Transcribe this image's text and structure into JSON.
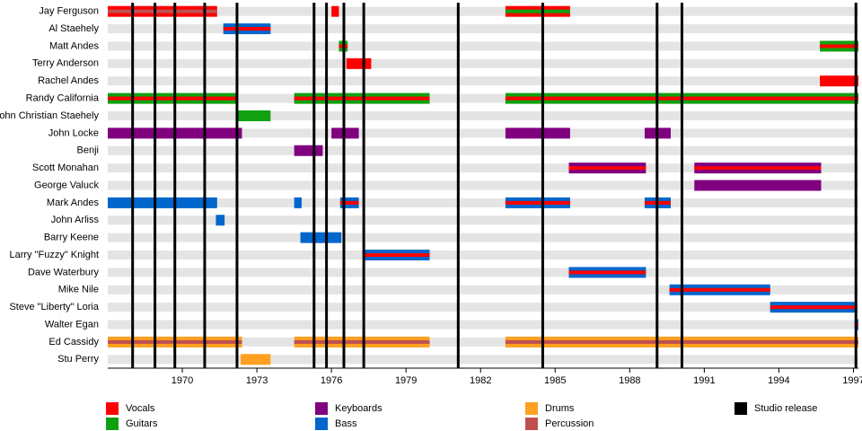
{
  "chart_data": {
    "type": "timeline",
    "xlim": [
      1967,
      1997.2
    ],
    "xticks": [
      1970,
      1973,
      1976,
      1979,
      1982,
      1985,
      1988,
      1991,
      1994,
      1997
    ],
    "roles": [
      {
        "name": "Vocals",
        "color": "#ff0000"
      },
      {
        "name": "Guitars",
        "color": "#10a010"
      },
      {
        "name": "Keyboards",
        "color": "#800080"
      },
      {
        "name": "Bass",
        "color": "#0066cc"
      },
      {
        "name": "Drums",
        "color": "#ffa020"
      },
      {
        "name": "Percussion",
        "color": "#c05050"
      }
    ],
    "releases_label": "Studio release",
    "releases_color": "#000000",
    "releases": [
      1968.0,
      1968.9,
      1969.7,
      1970.9,
      1972.2,
      1975.3,
      1975.8,
      1976.5,
      1977.3,
      1981.1,
      1984.5,
      1989.1,
      1990.1,
      1997.1
    ],
    "members": [
      {
        "name": "Jay Ferguson",
        "periods": [
          {
            "start": 1967,
            "end": 1971.4,
            "roles": [
              "Vocals",
              "Percussion"
            ]
          },
          {
            "start": 1976.0,
            "end": 1976.3,
            "roles": [
              "Vocals"
            ]
          },
          {
            "start": 1983.0,
            "end": 1985.6,
            "roles": [
              "Vocals",
              "Guitars"
            ]
          }
        ]
      },
      {
        "name": "Al Staehely",
        "periods": [
          {
            "start": 1971.65,
            "end": 1973.55,
            "roles": [
              "Bass",
              "Vocals"
            ]
          }
        ]
      },
      {
        "name": "Matt Andes",
        "periods": [
          {
            "start": 1976.3,
            "end": 1976.65,
            "roles": [
              "Guitars",
              "Vocals"
            ]
          },
          {
            "start": 1995.65,
            "end": 1997.2,
            "roles": [
              "Guitars",
              "Vocals"
            ]
          }
        ]
      },
      {
        "name": "Terry Anderson",
        "periods": [
          {
            "start": 1976.6,
            "end": 1977.6,
            "roles": [
              "Vocals"
            ]
          }
        ]
      },
      {
        "name": "Rachel Andes",
        "periods": [
          {
            "start": 1995.65,
            "end": 1997.2,
            "roles": [
              "Vocals"
            ]
          }
        ]
      },
      {
        "name": "Randy California",
        "periods": [
          {
            "start": 1967,
            "end": 1972.15,
            "roles": [
              "Guitars",
              "Vocals"
            ]
          },
          {
            "start": 1974.5,
            "end": 1979.95,
            "roles": [
              "Guitars",
              "Vocals"
            ]
          },
          {
            "start": 1983.0,
            "end": 1997.2,
            "roles": [
              "Guitars",
              "Vocals"
            ]
          }
        ]
      },
      {
        "name": "John Christian Staehely",
        "periods": [
          {
            "start": 1972.15,
            "end": 1973.55,
            "roles": [
              "Guitars"
            ]
          }
        ]
      },
      {
        "name": "John Locke",
        "periods": [
          {
            "start": 1967,
            "end": 1972.4,
            "roles": [
              "Keyboards"
            ]
          },
          {
            "start": 1976.0,
            "end": 1977.1,
            "roles": [
              "Keyboards"
            ]
          },
          {
            "start": 1983.0,
            "end": 1985.6,
            "roles": [
              "Keyboards"
            ]
          },
          {
            "start": 1988.6,
            "end": 1989.65,
            "roles": [
              "Keyboards"
            ]
          }
        ]
      },
      {
        "name": "Benji",
        "periods": [
          {
            "start": 1974.5,
            "end": 1975.65,
            "roles": [
              "Keyboards"
            ]
          }
        ]
      },
      {
        "name": "Scott Monahan",
        "periods": [
          {
            "start": 1985.55,
            "end": 1988.65,
            "roles": [
              "Keyboards",
              "Vocals"
            ]
          },
          {
            "start": 1990.6,
            "end": 1995.7,
            "roles": [
              "Keyboards",
              "Vocals"
            ]
          }
        ]
      },
      {
        "name": "George Valuck",
        "periods": [
          {
            "start": 1990.6,
            "end": 1995.7,
            "roles": [
              "Keyboards"
            ]
          }
        ]
      },
      {
        "name": "Mark Andes",
        "periods": [
          {
            "start": 1967,
            "end": 1971.4,
            "roles": [
              "Bass"
            ]
          },
          {
            "start": 1974.5,
            "end": 1974.8,
            "roles": [
              "Bass"
            ]
          },
          {
            "start": 1976.35,
            "end": 1977.1,
            "roles": [
              "Bass",
              "Vocals"
            ]
          },
          {
            "start": 1983.0,
            "end": 1985.6,
            "roles": [
              "Bass",
              "Vocals"
            ]
          },
          {
            "start": 1988.6,
            "end": 1989.65,
            "roles": [
              "Bass",
              "Vocals"
            ]
          }
        ]
      },
      {
        "name": "John Arliss",
        "periods": [
          {
            "start": 1971.35,
            "end": 1971.7,
            "roles": [
              "Bass"
            ]
          }
        ]
      },
      {
        "name": "Barry Keene",
        "periods": [
          {
            "start": 1974.75,
            "end": 1976.4,
            "roles": [
              "Bass"
            ]
          }
        ]
      },
      {
        "name": "Larry \"Fuzzy\" Knight",
        "periods": [
          {
            "start": 1977.35,
            "end": 1979.95,
            "roles": [
              "Bass",
              "Vocals"
            ]
          }
        ]
      },
      {
        "name": "Dave Waterbury",
        "periods": [
          {
            "start": 1985.55,
            "end": 1988.65,
            "roles": [
              "Bass",
              "Vocals"
            ]
          }
        ]
      },
      {
        "name": "Mike Nile",
        "periods": [
          {
            "start": 1989.6,
            "end": 1993.65,
            "roles": [
              "Bass",
              "Vocals"
            ]
          }
        ]
      },
      {
        "name": "Steve \"Liberty\" Loria",
        "periods": [
          {
            "start": 1993.65,
            "end": 1997.05,
            "roles": [
              "Bass",
              "Vocals"
            ]
          }
        ]
      },
      {
        "name": "Walter Egan",
        "periods": [
          {
            "start": 1997.05,
            "end": 1997.2,
            "roles": [
              "Bass",
              "Vocals"
            ]
          }
        ]
      },
      {
        "name": "Ed Cassidy",
        "periods": [
          {
            "start": 1967,
            "end": 1972.4,
            "roles": [
              "Drums",
              "Percussion"
            ]
          },
          {
            "start": 1974.5,
            "end": 1979.95,
            "roles": [
              "Drums",
              "Percussion"
            ]
          },
          {
            "start": 1983.0,
            "end": 1997.2,
            "roles": [
              "Drums",
              "Percussion"
            ]
          }
        ]
      },
      {
        "name": "Stu Perry",
        "periods": [
          {
            "start": 1972.35,
            "end": 1973.55,
            "roles": [
              "Drums"
            ]
          }
        ]
      }
    ]
  }
}
